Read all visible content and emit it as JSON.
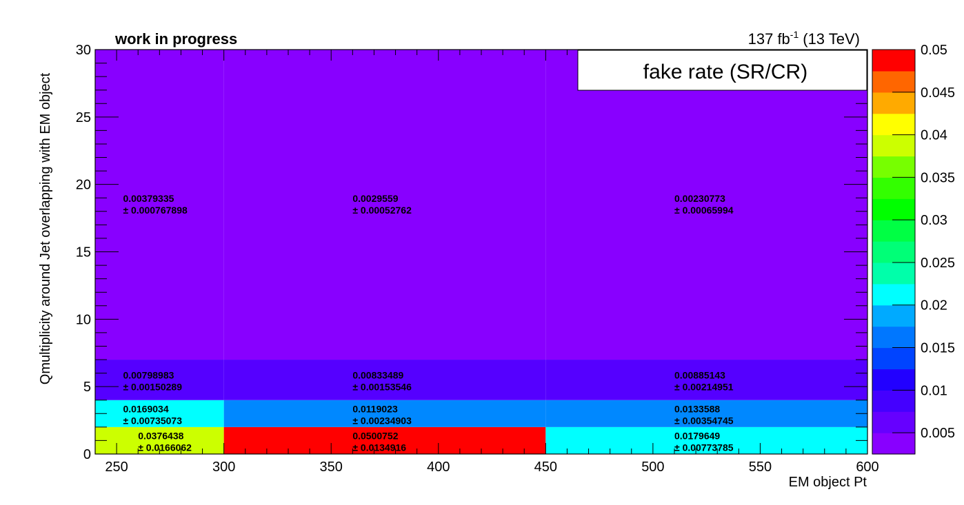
{
  "chart_data": {
    "type": "heatmap",
    "header_left": "work in progress",
    "lumi": {
      "value": "137 fb",
      "exponent": "-1",
      "energy": "(13 TeV)"
    },
    "legend_title": "fake rate (SR/CR)",
    "xlabel": "EM object Pt",
    "ylabel": "Qmultiplicity around Jet overlapping with EM object",
    "xlim": [
      240,
      600
    ],
    "ylim": [
      0,
      30
    ],
    "x_ticks": [
      "250",
      "300",
      "350",
      "400",
      "450",
      "500",
      "550",
      "600"
    ],
    "y_ticks": [
      "0",
      "5",
      "10",
      "15",
      "20",
      "25",
      "30"
    ],
    "z_range": [
      0.0025,
      0.05
    ],
    "z_ticks": [
      "0.005",
      "0.01",
      "0.015",
      "0.02",
      "0.025",
      "0.03",
      "0.035",
      "0.04",
      "0.045",
      "0.05"
    ],
    "palette": [
      "#8800ff",
      "#6600ff",
      "#4400ff",
      "#2200ff",
      "#0044ff",
      "#0077ff",
      "#00aaff",
      "#00ffff",
      "#00ffaa",
      "#00ff77",
      "#00ff44",
      "#00ff00",
      "#33ff00",
      "#77ff00",
      "#ccff00",
      "#ffff00",
      "#ffaa00",
      "#ff6600",
      "#ff0000"
    ],
    "x_edges": [
      240,
      300,
      450,
      600
    ],
    "y_edges": [
      0,
      2,
      4,
      7,
      30
    ],
    "cells": [
      {
        "x": [
          240,
          300
        ],
        "y": [
          0,
          2
        ],
        "value": "0.0376438",
        "error": "± 0.0166062",
        "color": "#ccff00",
        "label_x": 260,
        "label_y": 0.9
      },
      {
        "x": [
          300,
          450
        ],
        "y": [
          0,
          2
        ],
        "value": "0.0500752",
        "error": "± 0.0134916",
        "color": "#ff0000",
        "label_x": 360,
        "label_y": 0.9
      },
      {
        "x": [
          450,
          600
        ],
        "y": [
          0,
          2
        ],
        "value": "0.0179649",
        "error": "± 0.00773785",
        "color": "#00ffff",
        "label_x": 510,
        "label_y": 0.9
      },
      {
        "x": [
          240,
          300
        ],
        "y": [
          2,
          4
        ],
        "value": "0.0169034",
        "error": "± 0.00735073",
        "color": "#00ffff",
        "label_x": 253,
        "label_y": 2.9
      },
      {
        "x": [
          300,
          450
        ],
        "y": [
          2,
          4
        ],
        "value": "0.0119023",
        "error": "± 0.00234903",
        "color": "#0088ff",
        "label_x": 360,
        "label_y": 2.9
      },
      {
        "x": [
          450,
          600
        ],
        "y": [
          2,
          4
        ],
        "value": "0.0133588",
        "error": "± 0.00354745",
        "color": "#0088ff",
        "label_x": 510,
        "label_y": 2.9
      },
      {
        "x": [
          240,
          300
        ],
        "y": [
          4,
          7
        ],
        "value": "0.00798983",
        "error": "± 0.00150289",
        "color": "#5500ff",
        "label_x": 253,
        "label_y": 5.4
      },
      {
        "x": [
          300,
          450
        ],
        "y": [
          4,
          7
        ],
        "value": "0.00833489",
        "error": "± 0.00153546",
        "color": "#5500ff",
        "label_x": 360,
        "label_y": 5.4
      },
      {
        "x": [
          450,
          600
        ],
        "y": [
          4,
          7
        ],
        "value": "0.00885143",
        "error": "± 0.00214951",
        "color": "#5500ff",
        "label_x": 510,
        "label_y": 5.4
      },
      {
        "x": [
          240,
          300
        ],
        "y": [
          7,
          30
        ],
        "value": "0.00379335",
        "error": "± 0.000767898",
        "color": "#8800ff",
        "label_x": 253,
        "label_y": 18.5
      },
      {
        "x": [
          300,
          450
        ],
        "y": [
          7,
          30
        ],
        "value": "0.0029559",
        "error": "± 0.00052762",
        "color": "#8800ff",
        "label_x": 360,
        "label_y": 18.5
      },
      {
        "x": [
          450,
          600
        ],
        "y": [
          7,
          30
        ],
        "value": "0.00230773",
        "error": "± 0.00065994",
        "color": "#8800ff",
        "label_x": 510,
        "label_y": 18.5
      }
    ]
  }
}
